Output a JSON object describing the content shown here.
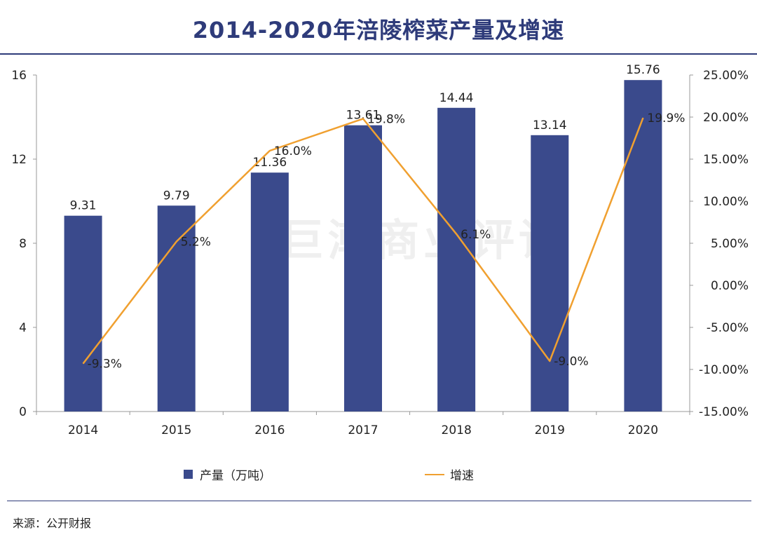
{
  "title": "2014-2020年涪陵榨菜产量及增速",
  "source": "来源：公开财报",
  "watermark": "巨潮商业评论",
  "colors": {
    "bar": "#3a4a8c",
    "line": "#f0a030",
    "title": "#2e3b7a"
  },
  "chart_data": {
    "type": "bar",
    "categories": [
      "2014",
      "2015",
      "2016",
      "2017",
      "2018",
      "2019",
      "2020"
    ],
    "series": [
      {
        "name": "产量（万吨）",
        "type": "bar",
        "axis": "left",
        "values": [
          9.31,
          9.79,
          11.36,
          13.61,
          14.44,
          13.14,
          15.76
        ],
        "labels": [
          "9.31",
          "9.79",
          "11.36",
          "13.61",
          "14.44",
          "13.14",
          "15.76"
        ]
      },
      {
        "name": "增速",
        "type": "line",
        "axis": "right",
        "values": [
          -9.3,
          5.2,
          16.0,
          19.8,
          6.1,
          -9.0,
          19.9
        ],
        "labels": [
          "-9.3%",
          "5.2%",
          "16.0%",
          "19.8%",
          "6.1%",
          "-9.0%",
          "19.9%"
        ]
      }
    ],
    "y_left": {
      "min": 0,
      "max": 16,
      "ticks": [
        "0",
        "4",
        "8",
        "12",
        "16"
      ]
    },
    "y_right": {
      "min": -15,
      "max": 25,
      "ticks": [
        "-15.00%",
        "-10.00%",
        "-5.00%",
        "0.00%",
        "5.00%",
        "10.00%",
        "15.00%",
        "20.00%",
        "25.00%"
      ]
    },
    "legend": [
      "产量（万吨）",
      "增速"
    ],
    "legend_position": "bottom"
  }
}
